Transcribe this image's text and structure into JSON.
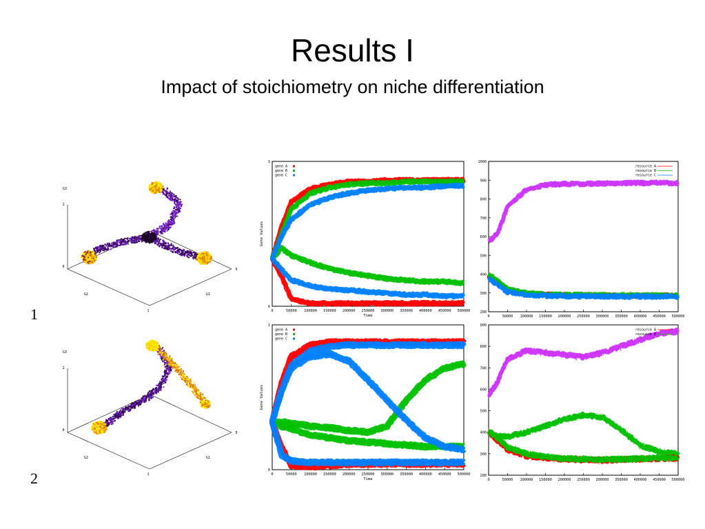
{
  "slide": {
    "title": "Results I",
    "subtitle": "Impact of stoichiometry on niche differentiation",
    "row_labels": [
      "1",
      "2"
    ]
  },
  "colors": {
    "gene_A": "#ff0000",
    "gene_B": "#00c000",
    "gene_C": "#0080ff",
    "magenta": "#cc33ff",
    "ternary_yellow": "#ffee00",
    "ternary_orange": "#e08000",
    "ternary_purple": "#7a1fcf",
    "ternary_dark": "#2a0a3a"
  },
  "chart_data": [
    {
      "id": "row1-simplex",
      "type": "scatter",
      "title": "",
      "axis_labels": {
        "vertical": "G3",
        "left": "G2",
        "right": "G1"
      },
      "tick_labels": {
        "top": "1",
        "origin": "0",
        "right_end": "0",
        "bottom": "1"
      }
    },
    {
      "id": "row1-genes",
      "type": "line",
      "xlabel": "Time",
      "ylabel": "Gene Values",
      "xlim": [
        0,
        500000
      ],
      "ylim": [
        0,
        1
      ],
      "x_ticks": [
        "0",
        "50000",
        "100000",
        "150000",
        "200000",
        "250000",
        "300000",
        "350000",
        "400000",
        "450000",
        "500000"
      ],
      "y_ticks": [
        "0",
        "1"
      ],
      "legend": [
        "gene A",
        "gene B",
        "gene C"
      ],
      "legend_position": "top-left",
      "x": [
        0,
        25000,
        50000,
        100000,
        150000,
        200000,
        250000,
        300000,
        350000,
        400000,
        450000,
        500000
      ],
      "series": [
        {
          "name": "gene A",
          "lines": [
            [
              0.33,
              0.55,
              0.72,
              0.81,
              0.84,
              0.86,
              0.86,
              0.87,
              0.87,
              0.87,
              0.87,
              0.87
            ],
            [
              0.33,
              0.2,
              0.05,
              0.02,
              0.02,
              0.02,
              0.02,
              0.02,
              0.02,
              0.02,
              0.02,
              0.02
            ]
          ]
        },
        {
          "name": "gene B",
          "lines": [
            [
              0.33,
              0.5,
              0.67,
              0.78,
              0.82,
              0.84,
              0.85,
              0.85,
              0.86,
              0.86,
              0.86,
              0.86
            ],
            [
              0.33,
              0.4,
              0.35,
              0.3,
              0.26,
              0.23,
              0.21,
              0.19,
              0.18,
              0.17,
              0.17,
              0.16
            ]
          ]
        },
        {
          "name": "gene C",
          "lines": [
            [
              0.33,
              0.48,
              0.6,
              0.7,
              0.75,
              0.78,
              0.8,
              0.81,
              0.82,
              0.82,
              0.83,
              0.83
            ],
            [
              0.33,
              0.25,
              0.18,
              0.14,
              0.12,
              0.11,
              0.1,
              0.09,
              0.08,
              0.08,
              0.07,
              0.07
            ]
          ]
        }
      ]
    },
    {
      "id": "row1-resources",
      "type": "line",
      "xlim": [
        0,
        500000
      ],
      "ylim": [
        200,
        1000
      ],
      "x_ticks": [
        "0",
        "50000",
        "100000",
        "150000",
        "200000",
        "250000",
        "300000",
        "350000",
        "400000",
        "450000",
        "500000"
      ],
      "y_ticks": [
        "200",
        "300",
        "400",
        "500",
        "600",
        "700",
        "800",
        "900",
        "1000"
      ],
      "legend": [
        "resource A",
        "resource B",
        "resource C"
      ],
      "legend_position": "top-right",
      "x": [
        0,
        25000,
        50000,
        100000,
        150000,
        200000,
        250000,
        300000,
        350000,
        400000,
        450000,
        500000
      ],
      "series": [
        {
          "name": "",
          "color_key": "magenta",
          "values": [
            570,
            620,
            760,
            850,
            875,
            880,
            880,
            882,
            884,
            885,
            885,
            885
          ]
        },
        {
          "name": "resource A",
          "values": [
            390,
            350,
            310,
            295,
            290,
            288,
            287,
            287,
            286,
            286,
            286,
            286
          ]
        },
        {
          "name": "resource B",
          "values": [
            400,
            360,
            320,
            300,
            292,
            290,
            289,
            288,
            287,
            287,
            287,
            287
          ]
        },
        {
          "name": "resource C",
          "values": [
            380,
            340,
            305,
            290,
            285,
            283,
            282,
            282,
            281,
            281,
            281,
            281
          ]
        }
      ]
    },
    {
      "id": "row2-simplex",
      "type": "scatter",
      "title": "",
      "axis_labels": {
        "vertical": "G3",
        "left": "G2",
        "right": "G1"
      },
      "tick_labels": {
        "top": "1",
        "origin": "0",
        "right_end": "0",
        "bottom": "1"
      }
    },
    {
      "id": "row2-genes",
      "type": "line",
      "xlabel": "Time",
      "ylabel": "Gene Values",
      "xlim": [
        0,
        500000
      ],
      "ylim": [
        0,
        1
      ],
      "x_ticks": [
        "0",
        "50000",
        "100000",
        "150000",
        "200000",
        "250000",
        "300000",
        "350000",
        "400000",
        "450000",
        "500000"
      ],
      "y_ticks": [
        "0",
        "1"
      ],
      "legend": [
        "gene A",
        "gene B",
        "gene C"
      ],
      "legend_position": "top-left",
      "x": [
        0,
        25000,
        50000,
        100000,
        150000,
        200000,
        250000,
        300000,
        350000,
        400000,
        450000,
        500000
      ],
      "series": [
        {
          "name": "gene A",
          "lines": [
            [
              0.33,
              0.6,
              0.78,
              0.86,
              0.88,
              0.88,
              0.88,
              0.88,
              0.88,
              0.88,
              0.88,
              0.88
            ],
            [
              0.33,
              0.15,
              0.03,
              0.02,
              0.03,
              0.04,
              0.04,
              0.04,
              0.04,
              0.04,
              0.04,
              0.04
            ]
          ]
        },
        {
          "name": "gene B",
          "lines": [
            [
              0.33,
              0.33,
              0.32,
              0.3,
              0.29,
              0.27,
              0.26,
              0.3,
              0.48,
              0.62,
              0.7,
              0.73
            ],
            [
              0.33,
              0.3,
              0.28,
              0.24,
              0.22,
              0.2,
              0.19,
              0.18,
              0.17,
              0.16,
              0.16,
              0.16
            ]
          ]
        },
        {
          "name": "gene C",
          "lines": [
            [
              0.33,
              0.55,
              0.72,
              0.82,
              0.85,
              0.86,
              0.86,
              0.86,
              0.86,
              0.86,
              0.86,
              0.86
            ],
            [
              0.33,
              0.55,
              0.7,
              0.78,
              0.8,
              0.75,
              0.62,
              0.48,
              0.34,
              0.22,
              0.16,
              0.14
            ],
            [
              0.33,
              0.1,
              0.06,
              0.05,
              0.05,
              0.05,
              0.05,
              0.05,
              0.05,
              0.05,
              0.05,
              0.05
            ]
          ]
        }
      ]
    },
    {
      "id": "row2-resources",
      "type": "line",
      "xlim": [
        0,
        500000
      ],
      "ylim": [
        200,
        900
      ],
      "x_ticks": [
        "0",
        "50000",
        "100000",
        "150000",
        "200000",
        "250000",
        "300000",
        "350000",
        "400000",
        "450000",
        "500000"
      ],
      "y_ticks": [
        "200",
        "300",
        "400",
        "500",
        "600",
        "700",
        "800",
        "900"
      ],
      "legend": [
        "resource A",
        "resource B"
      ],
      "legend_position": "top-right",
      "x": [
        0,
        25000,
        50000,
        100000,
        150000,
        200000,
        250000,
        300000,
        350000,
        400000,
        450000,
        500000
      ],
      "series": [
        {
          "name": "",
          "color_key": "magenta",
          "values": [
            570,
            640,
            740,
            780,
            770,
            760,
            750,
            770,
            800,
            830,
            860,
            870
          ]
        },
        {
          "name": "",
          "color_key": "gene_B",
          "values": [
            400,
            380,
            380,
            400,
            430,
            460,
            480,
            470,
            410,
            340,
            310,
            300
          ]
        },
        {
          "name": "resource A",
          "values": [
            400,
            360,
            320,
            290,
            280,
            275,
            272,
            270,
            272,
            275,
            278,
            280
          ]
        },
        {
          "name": "resource B",
          "values": [
            405,
            370,
            330,
            300,
            285,
            278,
            275,
            273,
            274,
            277,
            280,
            282
          ]
        }
      ]
    }
  ]
}
